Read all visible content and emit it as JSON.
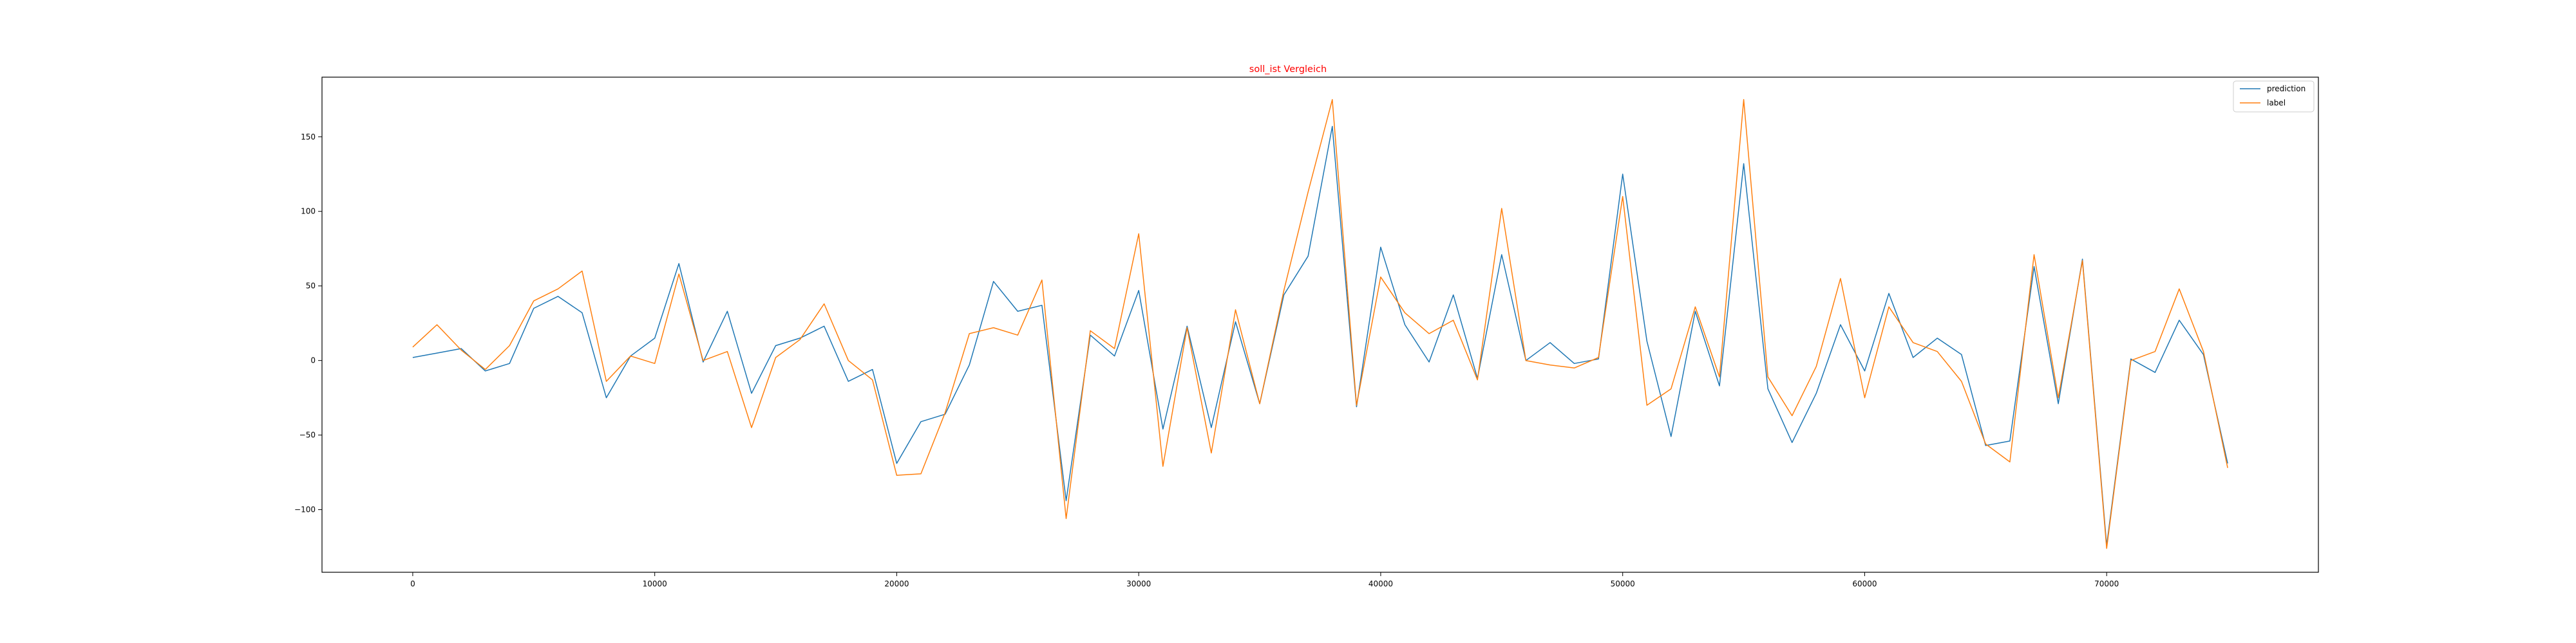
{
  "chart_data": {
    "type": "line",
    "title": "soll_ist Vergleich",
    "title_color": "#ff0000",
    "xlabel": "",
    "ylabel": "",
    "xlim": [
      -3750,
      78750
    ],
    "ylim": [
      -142,
      190
    ],
    "x_ticks": [
      0,
      10000,
      20000,
      30000,
      40000,
      50000,
      60000,
      70000
    ],
    "y_ticks": [
      -100,
      -50,
      0,
      50,
      100,
      150
    ],
    "grid": false,
    "legend_position": "upper right",
    "x": [
      0,
      1000,
      2000,
      3000,
      4000,
      5000,
      6000,
      7000,
      8000,
      9000,
      10000,
      11000,
      12000,
      13000,
      14000,
      15000,
      16000,
      17000,
      18000,
      19000,
      20000,
      21000,
      22000,
      23000,
      24000,
      25000,
      26000,
      27000,
      28000,
      29000,
      30000,
      31000,
      32000,
      33000,
      34000,
      35000,
      36000,
      37000,
      38000,
      39000,
      40000,
      41000,
      42000,
      43000,
      44000,
      45000,
      46000,
      47000,
      48000,
      49000,
      50000,
      51000,
      52000,
      53000,
      54000,
      55000,
      56000,
      57000,
      58000,
      59000,
      60000,
      61000,
      62000,
      63000,
      64000,
      65000,
      66000,
      67000,
      68000,
      69000,
      70000,
      71000,
      72000,
      73000,
      74000,
      75000
    ],
    "series": [
      {
        "name": "prediction",
        "color": "#1f77b4",
        "values": [
          2,
          5,
          8,
          -7,
          -2,
          35,
          43,
          32,
          -25,
          3,
          15,
          65,
          -1,
          33,
          -22,
          10,
          15,
          23,
          -14,
          -6,
          -69,
          -41,
          -36,
          -3,
          53,
          33,
          37,
          -94,
          17,
          3,
          47,
          -46,
          23,
          -45,
          26,
          -29,
          44,
          70,
          157,
          -31,
          76,
          24,
          -1,
          44,
          -12,
          71,
          0,
          12,
          -2,
          1,
          125,
          13,
          -51,
          33,
          -17,
          132,
          -19,
          -55,
          -22,
          24,
          -7,
          45,
          2,
          15,
          4,
          -57,
          -54,
          63,
          -29,
          68,
          -124,
          1,
          -8,
          27,
          4,
          -69
        ]
      },
      {
        "name": "label",
        "color": "#ff7f0e",
        "values": [
          9,
          24,
          7,
          -6,
          10,
          40,
          48,
          60,
          -14,
          3,
          -2,
          58,
          0,
          6,
          -45,
          2,
          14,
          38,
          0,
          -13,
          -77,
          -76,
          -35,
          18,
          22,
          17,
          54,
          -106,
          20,
          8,
          85,
          -71,
          22,
          -62,
          34,
          -29,
          47,
          113,
          175,
          -30,
          56,
          32,
          18,
          27,
          -13,
          102,
          0,
          -3,
          -5,
          2,
          110,
          -30,
          -19,
          36,
          -11,
          175,
          -11,
          -37,
          -4,
          55,
          -25,
          36,
          12,
          6,
          -14,
          -56,
          -68,
          71,
          -25,
          67,
          -126,
          0,
          6,
          48,
          6,
          -72
        ]
      }
    ]
  }
}
